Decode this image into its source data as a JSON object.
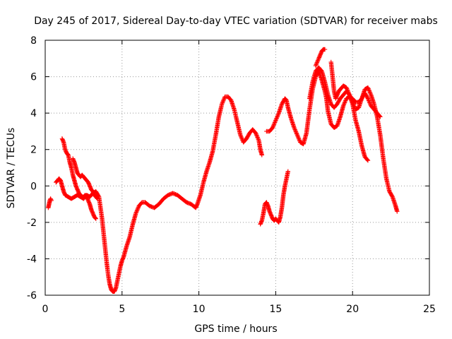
{
  "chart_data": {
    "type": "scatter",
    "title": "Day 245 of 2017, Sidereal Day-to-day VTEC variation (SDTVAR) for receiver mabs",
    "xlabel": "GPS time / hours",
    "ylabel": "SDTVAR / TECUs",
    "xlim": [
      0,
      25
    ],
    "ylim": [
      -6,
      8
    ],
    "xticks": [
      0,
      5,
      10,
      15,
      20,
      25
    ],
    "yticks": [
      -6,
      -4,
      -2,
      0,
      2,
      4,
      6,
      8
    ],
    "grid": true,
    "marker": "+",
    "color": "#ff0000",
    "series": [
      {
        "x": [
          0.2,
          0.25,
          0.3,
          0.35,
          0.4
        ],
        "y": [
          -1.2,
          -1.0,
          -0.8,
          -0.7,
          -0.8
        ]
      },
      {
        "x": [
          0.7,
          0.8,
          0.9,
          1.0,
          1.1,
          1.2,
          1.3,
          1.5,
          1.7,
          1.9,
          2.1,
          2.3,
          2.5,
          2.7,
          2.9,
          3.1,
          3.3,
          3.5,
          3.6,
          3.7,
          3.8,
          3.9,
          4.0,
          4.1,
          4.2,
          4.3,
          4.4,
          4.5,
          4.6,
          4.7,
          4.8,
          4.9,
          5.0,
          5.1,
          5.3,
          5.5,
          5.7,
          5.9,
          6.1,
          6.3,
          6.5,
          6.8,
          7.1,
          7.4,
          7.7,
          8.0,
          8.3,
          8.6,
          8.9,
          9.2,
          9.5,
          9.8,
          9.9,
          10.1,
          10.3,
          10.5,
          10.7,
          10.9,
          11.1,
          11.3,
          11.5,
          11.7,
          11.9,
          12.1,
          12.3,
          12.5,
          12.7,
          12.9,
          13.1,
          13.3,
          13.5,
          13.7,
          13.9,
          14.0,
          14.1
        ],
        "y": [
          0.2,
          0.3,
          0.4,
          0.3,
          0.0,
          -0.3,
          -0.5,
          -0.6,
          -0.7,
          -0.6,
          -0.5,
          -0.6,
          -0.7,
          -0.5,
          -0.6,
          -0.4,
          -0.3,
          -0.6,
          -1.2,
          -1.8,
          -2.6,
          -3.4,
          -4.2,
          -4.9,
          -5.4,
          -5.7,
          -5.8,
          -5.8,
          -5.6,
          -5.2,
          -4.8,
          -4.4,
          -4.1,
          -3.9,
          -3.3,
          -2.8,
          -2.1,
          -1.5,
          -1.1,
          -0.9,
          -0.9,
          -1.1,
          -1.2,
          -1.0,
          -0.7,
          -0.5,
          -0.4,
          -0.5,
          -0.7,
          -0.9,
          -1.0,
          -1.2,
          -1.0,
          -0.5,
          0.2,
          0.8,
          1.3,
          1.9,
          2.8,
          3.8,
          4.5,
          4.9,
          4.9,
          4.7,
          4.2,
          3.5,
          2.8,
          2.4,
          2.6,
          2.9,
          3.1,
          2.9,
          2.5,
          2.0,
          1.7
        ]
      },
      {
        "x": [
          1.1,
          1.2,
          1.3,
          1.4,
          1.5,
          1.6,
          1.7,
          1.8,
          1.9,
          2.0,
          2.1,
          2.2,
          2.3,
          2.4,
          2.5,
          2.6,
          2.7,
          2.8,
          2.9,
          3.0,
          3.1,
          3.2,
          3.3
        ],
        "y": [
          2.6,
          2.4,
          2.0,
          1.8,
          1.7,
          1.3,
          1.0,
          0.6,
          0.3,
          0.0,
          -0.2,
          -0.4,
          -0.5,
          -0.6,
          -0.6,
          -0.5,
          -0.6,
          -0.8,
          -1.0,
          -1.3,
          -1.5,
          -1.7,
          -1.8
        ]
      },
      {
        "x": [
          1.8,
          1.9,
          2.0,
          2.1,
          2.2,
          2.3,
          2.4,
          2.5,
          2.6,
          2.7,
          2.8,
          2.9,
          3.0,
          3.1,
          3.2,
          3.3,
          3.4
        ],
        "y": [
          1.5,
          1.3,
          1.0,
          0.7,
          0.6,
          0.5,
          0.6,
          0.5,
          0.4,
          0.3,
          0.2,
          0.0,
          -0.2,
          -0.3,
          -0.5,
          -0.6,
          -0.7
        ]
      },
      {
        "x": [
          14.0,
          14.1,
          14.2,
          14.3,
          14.4,
          14.5,
          14.6,
          14.7,
          14.8,
          14.9,
          15.0,
          15.1,
          15.2,
          15.3,
          15.4,
          15.5,
          15.6,
          15.7,
          15.8
        ],
        "y": [
          -2.1,
          -1.9,
          -1.5,
          -1.0,
          -0.9,
          -1.1,
          -1.4,
          -1.6,
          -1.8,
          -1.9,
          -1.8,
          -1.9,
          -2.0,
          -1.7,
          -1.2,
          -0.5,
          0.0,
          0.4,
          0.8
        ]
      },
      {
        "x": [
          14.4,
          14.6,
          14.8,
          15.0,
          15.2,
          15.4,
          15.6,
          15.7,
          15.8,
          16.0,
          16.2,
          16.4,
          16.6,
          16.8,
          17.0,
          17.2,
          17.4,
          17.6,
          17.8,
          18.0,
          18.2,
          18.3,
          18.4,
          18.6,
          18.8,
          19.0,
          19.2,
          19.4,
          19.6,
          19.8,
          20.0,
          20.2,
          20.4,
          20.6,
          20.8,
          21.0,
          21.2,
          21.4,
          21.6,
          21.8
        ],
        "y": [
          3.0,
          3.0,
          3.2,
          3.6,
          4.0,
          4.5,
          4.8,
          4.7,
          4.3,
          3.7,
          3.2,
          2.8,
          2.4,
          2.3,
          2.9,
          4.2,
          5.3,
          6.0,
          6.3,
          5.8,
          5.2,
          4.8,
          4.1,
          3.4,
          3.2,
          3.3,
          3.8,
          4.4,
          4.8,
          4.9,
          4.8,
          4.6,
          4.6,
          4.8,
          5.1,
          4.8,
          4.4,
          4.2,
          4.0,
          3.8
        ]
      },
      {
        "x": [
          17.2,
          17.4,
          17.6,
          17.8,
          18.0,
          18.2,
          18.4,
          18.6,
          18.8,
          19.0,
          19.2,
          19.4,
          19.6,
          19.8,
          20.0,
          20.2,
          20.4,
          20.6,
          20.8,
          21.0
        ],
        "y": [
          4.8,
          5.7,
          6.3,
          6.5,
          6.3,
          5.7,
          5.0,
          4.5,
          4.3,
          4.5,
          4.8,
          5.0,
          5.2,
          5.0,
          4.5,
          3.6,
          3.0,
          2.2,
          1.6,
          1.4
        ]
      },
      {
        "x": [
          17.6,
          17.8,
          17.9,
          18.0,
          18.1,
          18.2
        ],
        "y": [
          6.6,
          7.0,
          7.2,
          7.4,
          7.5,
          7.5
        ]
      },
      {
        "x": [
          18.6,
          18.7,
          18.8,
          18.9,
          19.0,
          19.1,
          19.2,
          19.4,
          19.6,
          19.8,
          20.0,
          20.2,
          20.4,
          20.6,
          20.8,
          21.0,
          21.2,
          21.4,
          21.6,
          21.8,
          22.0,
          22.2,
          22.4,
          22.6,
          22.8,
          22.9
        ],
        "y": [
          6.8,
          6.0,
          5.2,
          4.8,
          5.0,
          5.2,
          5.3,
          5.5,
          5.4,
          5.0,
          4.6,
          4.2,
          4.3,
          4.8,
          5.3,
          5.4,
          5.0,
          4.5,
          3.8,
          2.8,
          1.5,
          0.4,
          -0.3,
          -0.6,
          -1.1,
          -1.4
        ]
      }
    ]
  }
}
